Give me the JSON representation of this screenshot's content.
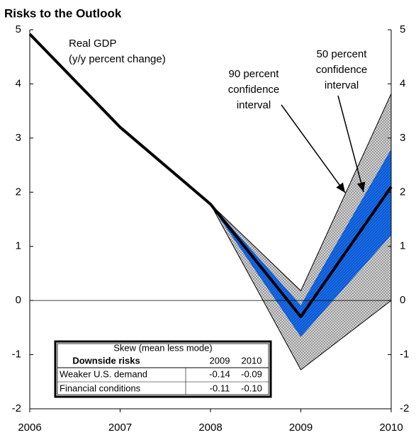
{
  "chart_data": {
    "type": "fan",
    "title": "Risks to the Outlook",
    "x": [
      2006,
      2007,
      2008,
      2009,
      2010
    ],
    "series": [
      {
        "name": "Real GDP",
        "color": "#000000",
        "values": [
          4.92,
          3.2,
          1.78,
          -0.3,
          2.1
        ]
      }
    ],
    "bands": [
      {
        "color": "#b0b0b0",
        "x": [
          2008,
          2009,
          2010
        ],
        "upper": [
          1.78,
          0.18,
          3.82
        ],
        "lower": [
          1.78,
          -1.28,
          0
        ]
      },
      {
        "color": "#0a5ad6",
        "x": [
          2008,
          2009,
          2010
        ],
        "upper": [
          1.78,
          -0.1,
          2.78
        ],
        "lower": [
          1.78,
          -0.66,
          1.22
        ]
      }
    ],
    "xlim": [
      2006,
      2010
    ],
    "xticks": [
      2006,
      2007,
      2008,
      2009,
      2010
    ],
    "ylim": [
      -2,
      5
    ],
    "yticks": [
      -2,
      -1,
      0,
      1,
      2,
      3,
      4,
      5
    ],
    "y2lim": [
      -2,
      5
    ],
    "y2ticks": [
      -2,
      -1,
      0,
      1,
      2,
      3,
      4,
      5
    ],
    "annotations": {
      "gdp": [
        "Real GDP",
        "(y/y percent change)"
      ],
      "ci90": [
        "90 percent",
        "confidence",
        "interval"
      ],
      "ci50": [
        "50 percent",
        "confidence",
        "interval"
      ]
    },
    "table": {
      "title": "Skew (mean less mode)",
      "header": [
        "Downside risks",
        "2009",
        "2010"
      ],
      "rows": [
        [
          "Weaker U.S. demand",
          "-0.14",
          "-0.09"
        ],
        [
          "Financial conditions",
          "-0.11",
          "-0.10"
        ]
      ]
    }
  }
}
